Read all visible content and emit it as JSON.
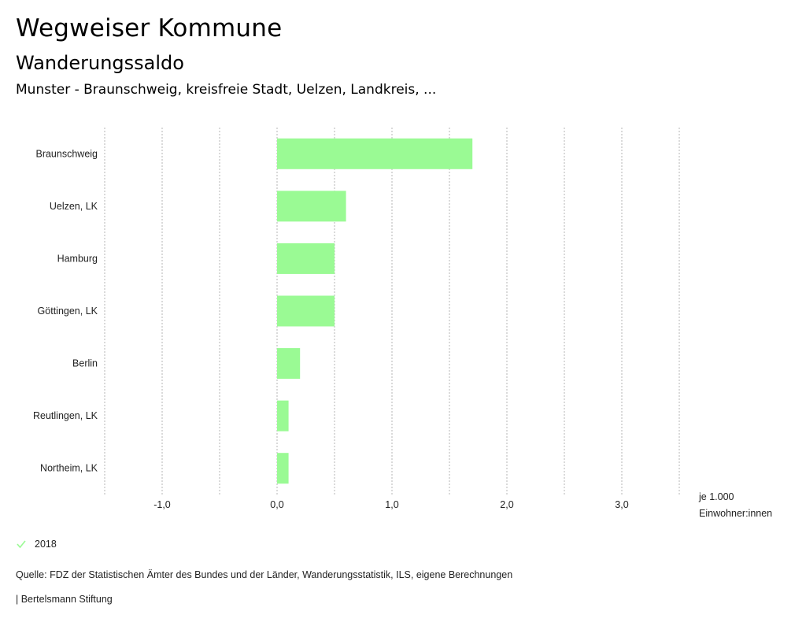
{
  "header": {
    "title": "Wegweiser Kommune",
    "subtitle": "Wanderungssaldo",
    "region": "Munster - Braunschweig, kreisfreie Stadt, Uelzen, Landkreis, ..."
  },
  "chart_data": {
    "type": "bar",
    "orientation": "horizontal",
    "title": "Wanderungssaldo",
    "categories": [
      "Braunschweig",
      "Uelzen, LK",
      "Hamburg",
      "Göttingen, LK",
      "Berlin",
      "Reutlingen, LK",
      "Northeim, LK"
    ],
    "series": [
      {
        "name": "2018",
        "values": [
          1.7,
          0.6,
          0.5,
          0.5,
          0.2,
          0.1,
          0.1
        ],
        "color": "#9afa94"
      }
    ],
    "xlim": [
      -1.5,
      3.5
    ],
    "xticks": [
      -1.0,
      0.0,
      1.0,
      2.0,
      3.0
    ],
    "xtick_labels": [
      "-1,0",
      "0,0",
      "1,0",
      "2,0",
      "3,0"
    ],
    "xlabel_lines": [
      "je 1.000",
      "Einwohner:innen"
    ],
    "ylabel": "",
    "grid": "vertical dotted, every 0.5",
    "legend_position": "bottom-left"
  },
  "legend": {
    "items": [
      {
        "label": "2018",
        "color": "#9afa94",
        "icon": "check-icon"
      }
    ]
  },
  "footer": {
    "source": "Quelle: FDZ der Statistischen Ämter des Bundes und der Länder, Wanderungsstatistik, ILS, eigene Berechnungen",
    "credit": "| Bertelsmann Stiftung"
  }
}
